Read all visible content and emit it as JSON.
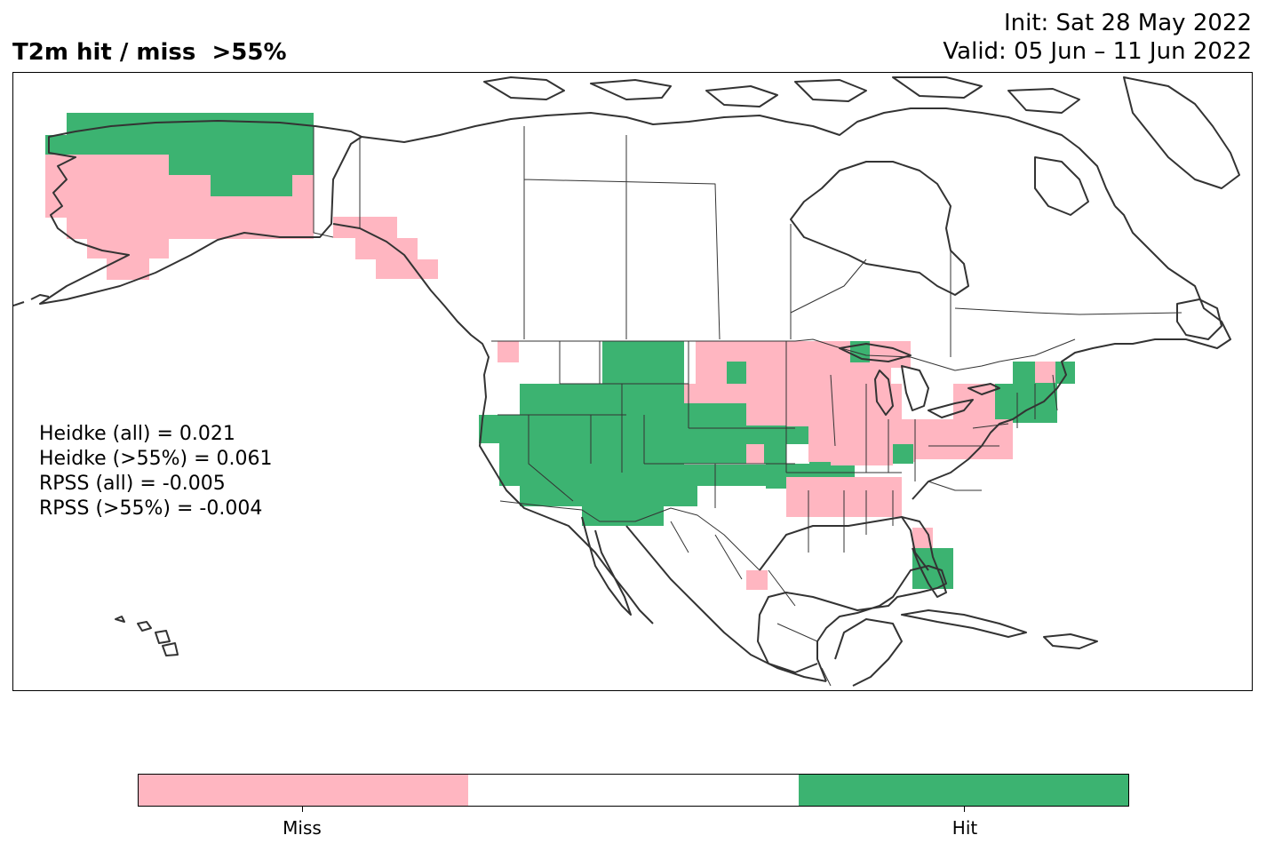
{
  "title": {
    "main": "T2m hit / miss  >55%",
    "init": "Init: Sat 28 May 2022",
    "valid": "Valid: 05 Jun – 11 Jun 2022"
  },
  "stats": [
    "Heidke (all) = 0.021",
    "Heidke (>55%) = 0.061",
    "RPSS (all) = -0.005",
    "RPSS (>55%) = -0.004"
  ],
  "colors": {
    "miss": "#ffb6c1",
    "neutral": "#ffffff",
    "hit": "#3cb371",
    "coast": "#333333",
    "border": "#333333"
  },
  "legend": {
    "miss_label": "Miss",
    "hit_label": "Hit"
  }
}
